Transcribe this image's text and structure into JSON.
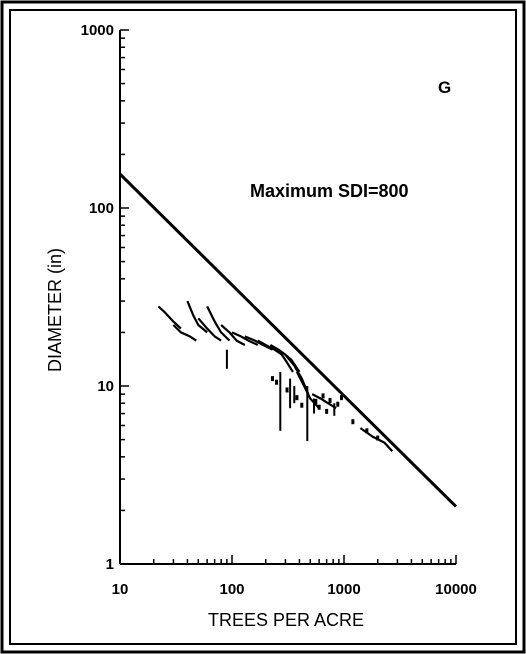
{
  "chart_data": {
    "type": "line",
    "title": "",
    "panel_label": "G",
    "annotation": "Maximum SDI=800",
    "xlabel": "TREES PER ACRE",
    "ylabel": "DIAMETER (in)",
    "x_scale": "log",
    "y_scale": "log",
    "xlim": [
      10,
      10000
    ],
    "ylim": [
      1,
      1000
    ],
    "x_ticks": [
      "10",
      "100",
      "1000",
      "10000"
    ],
    "y_ticks": [
      "1",
      "10",
      "100",
      "1000"
    ],
    "grid": false,
    "legend": "none",
    "series": [
      {
        "kind": "max_line",
        "points": [
          [
            10,
            155
          ],
          [
            10000,
            2.1
          ]
        ]
      },
      {
        "kind": "stand_traces",
        "traces": [
          [
            [
              22,
              28
            ],
            [
              25,
              26
            ],
            [
              30,
              23
            ],
            [
              35,
              21
            ]
          ],
          [
            [
              30,
              22
            ],
            [
              35,
              20
            ],
            [
              42,
              19
            ],
            [
              48,
              18
            ]
          ],
          [
            [
              40,
              30
            ],
            [
              45,
              25
            ],
            [
              50,
              22
            ],
            [
              60,
              20
            ]
          ],
          [
            [
              50,
              24
            ],
            [
              60,
              21
            ],
            [
              70,
              19
            ],
            [
              80,
              18
            ]
          ],
          [
            [
              60,
              28
            ],
            [
              70,
              23
            ],
            [
              80,
              20
            ],
            [
              95,
              18
            ]
          ],
          [
            [
              80,
              22
            ],
            [
              95,
              20
            ],
            [
              110,
              18
            ],
            [
              130,
              17
            ]
          ],
          [
            [
              100,
              20
            ],
            [
              120,
              19
            ],
            [
              140,
              18
            ],
            [
              170,
              17
            ]
          ],
          [
            [
              130,
              19
            ],
            [
              160,
              18
            ],
            [
              190,
              17
            ],
            [
              230,
              16
            ]
          ],
          [
            [
              170,
              18
            ],
            [
              200,
              17
            ],
            [
              240,
              16
            ],
            [
              280,
              15
            ]
          ],
          [
            [
              220,
              17
            ],
            [
              260,
              16
            ],
            [
              300,
              14
            ],
            [
              350,
              12
            ]
          ],
          [
            [
              260,
              16
            ],
            [
              300,
              15
            ],
            [
              340,
              14
            ],
            [
              400,
              12
            ]
          ],
          [
            [
              300,
              15
            ],
            [
              360,
              13
            ],
            [
              420,
              11
            ],
            [
              480,
              9
            ]
          ],
          [
            [
              380,
              12
            ],
            [
              440,
              10
            ],
            [
              500,
              8.5
            ],
            [
              600,
              7.5
            ]
          ],
          [
            [
              520,
              9
            ],
            [
              620,
              8.5
            ],
            [
              720,
              8
            ],
            [
              850,
              7.5
            ]
          ],
          [
            [
              1400,
              5.8
            ],
            [
              1800,
              5.2
            ],
            [
              2300,
              4.8
            ],
            [
              2700,
              4.3
            ]
          ]
        ],
        "drops": [
          [
            [
              90,
              16
            ],
            [
              90,
              12.5
            ]
          ],
          [
            [
              270,
              12
            ],
            [
              270,
              5.6
            ]
          ],
          [
            [
              330,
              11
            ],
            [
              330,
              7.5
            ]
          ],
          [
            [
              360,
              10
            ],
            [
              360,
              8
            ]
          ],
          [
            [
              470,
              10
            ],
            [
              470,
              4.9
            ]
          ],
          [
            [
              540,
              8.5
            ],
            [
              540,
              7
            ]
          ],
          [
            [
              820,
              8
            ],
            [
              820,
              6.8
            ]
          ]
        ],
        "dots": [
          [
            230,
            11
          ],
          [
            250,
            10.5
          ],
          [
            310,
            9.5
          ],
          [
            380,
            8.6
          ],
          [
            420,
            7.8
          ],
          [
            560,
            8.2
          ],
          [
            600,
            7.6
          ],
          [
            650,
            8.8
          ],
          [
            700,
            7.2
          ],
          [
            750,
            8.3
          ],
          [
            880,
            7.9
          ],
          [
            950,
            8.6
          ],
          [
            1200,
            6.3
          ],
          [
            1600,
            5.6
          ],
          [
            2000,
            5.1
          ]
        ]
      }
    ]
  }
}
